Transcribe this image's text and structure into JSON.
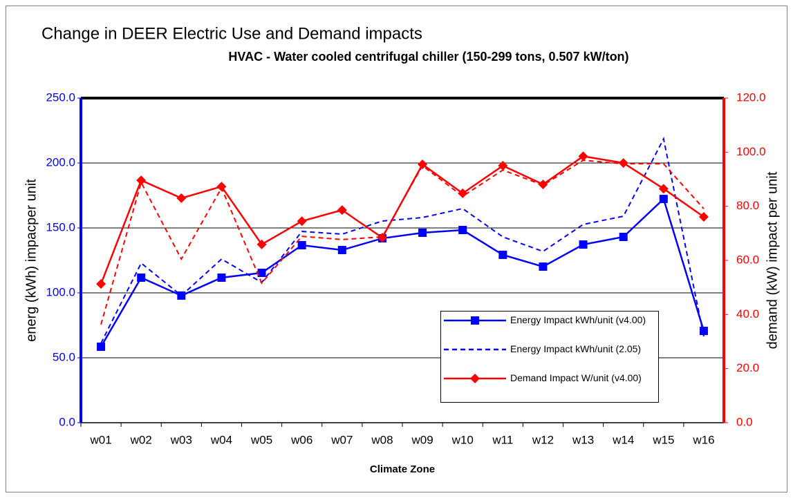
{
  "chart_data": {
    "type": "line",
    "title": "Change in DEER Electric Use and Demand impacts",
    "subtitle": "HVAC - Water cooled centrifugal chiller (150-299 tons, 0.507 kW/ton)",
    "x_label": "Climate Zone",
    "y_label": "energ (kWh) impacper unit",
    "y2_label": "demand (kW) impact per unit",
    "categories": [
      "w01",
      "w02",
      "w03",
      "w04",
      "w05",
      "w06",
      "w07",
      "w08",
      "w09",
      "w10",
      "w11",
      "w12",
      "w13",
      "w14",
      "w15",
      "w16"
    ],
    "ylim": [
      0,
      250
    ],
    "yticks": [
      {
        "value": 0,
        "label": "0.0"
      },
      {
        "value": 50,
        "label": "50.0"
      },
      {
        "value": 100,
        "label": "100.0"
      },
      {
        "value": 150,
        "label": "150.0"
      },
      {
        "value": 200,
        "label": "200.0"
      },
      {
        "value": 250,
        "label": "250.0"
      }
    ],
    "y2lim": [
      0,
      120
    ],
    "y2ticks": [
      {
        "value": 0,
        "label": "0.0"
      },
      {
        "value": 20,
        "label": "20.0"
      },
      {
        "value": 40,
        "label": "40.0"
      },
      {
        "value": 60,
        "label": "60.0"
      },
      {
        "value": 80,
        "label": "80.0"
      },
      {
        "value": 100,
        "label": "100.0"
      },
      {
        "value": 120,
        "label": "120.0"
      }
    ],
    "grid": true,
    "series": [
      {
        "name": "Energy Impact kWh/unit (v4.00)",
        "color": "#0000ff",
        "marker": "square",
        "line_style": "solid",
        "values": [
          58.5,
          111.7,
          97.9,
          111.7,
          115.4,
          136.7,
          133.0,
          142.0,
          146.3,
          148.4,
          129.3,
          120.2,
          137.2,
          143.1,
          172.3,
          70.7
        ]
      },
      {
        "name": "Energy Impact kWh/unit (2.05)",
        "color": "#0000ff",
        "marker": null,
        "line_style": "dashed",
        "values": [
          61.2,
          122.9,
          97.9,
          126.0,
          108.0,
          147.3,
          145.2,
          155.3,
          158.0,
          164.9,
          143.1,
          131.9,
          152.7,
          159.0,
          218.6,
          66.5
        ]
      },
      {
        "name": "Demand Impact W/unit (v4.00)",
        "color": "#ff0000",
        "marker": "diamond",
        "line_style": "solid",
        "axis": "y2",
        "values": [
          51.3,
          89.6,
          83.0,
          87.3,
          65.9,
          74.5,
          78.6,
          68.4,
          95.5,
          84.8,
          95.0,
          88.1,
          98.5,
          96.0,
          86.5,
          76.1
        ]
      },
      {
        "color": "#ff0000",
        "marker": null,
        "line_style": "dashed",
        "axis": "y2",
        "values": [
          36.3,
          88.8,
          60.5,
          86.8,
          51.6,
          68.9,
          67.7,
          68.7,
          95.0,
          83.7,
          93.4,
          87.8,
          97.0,
          95.7,
          95.7,
          79.1
        ]
      }
    ]
  }
}
